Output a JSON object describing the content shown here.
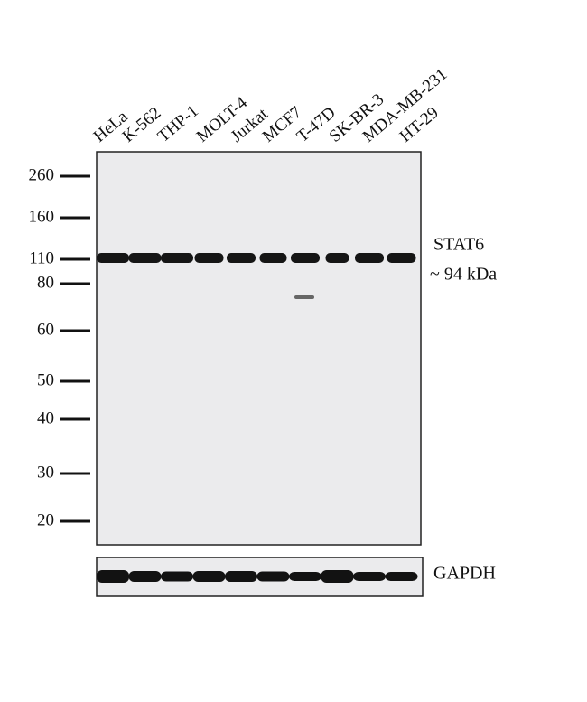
{
  "lanes": [
    "HeLa",
    "K-562",
    "THP-1",
    "MOLT-4",
    "Jurkat",
    "MCF7",
    "T-47D",
    "SK-BR-3",
    "MDA-MB-231",
    "HT-29"
  ],
  "markers": [
    "260",
    "160",
    "110",
    "80",
    "60",
    "50",
    "40",
    "30",
    "20"
  ],
  "target": {
    "name": "STAT6",
    "size": "~ 94 kDa"
  },
  "loading_control": "GAPDH"
}
